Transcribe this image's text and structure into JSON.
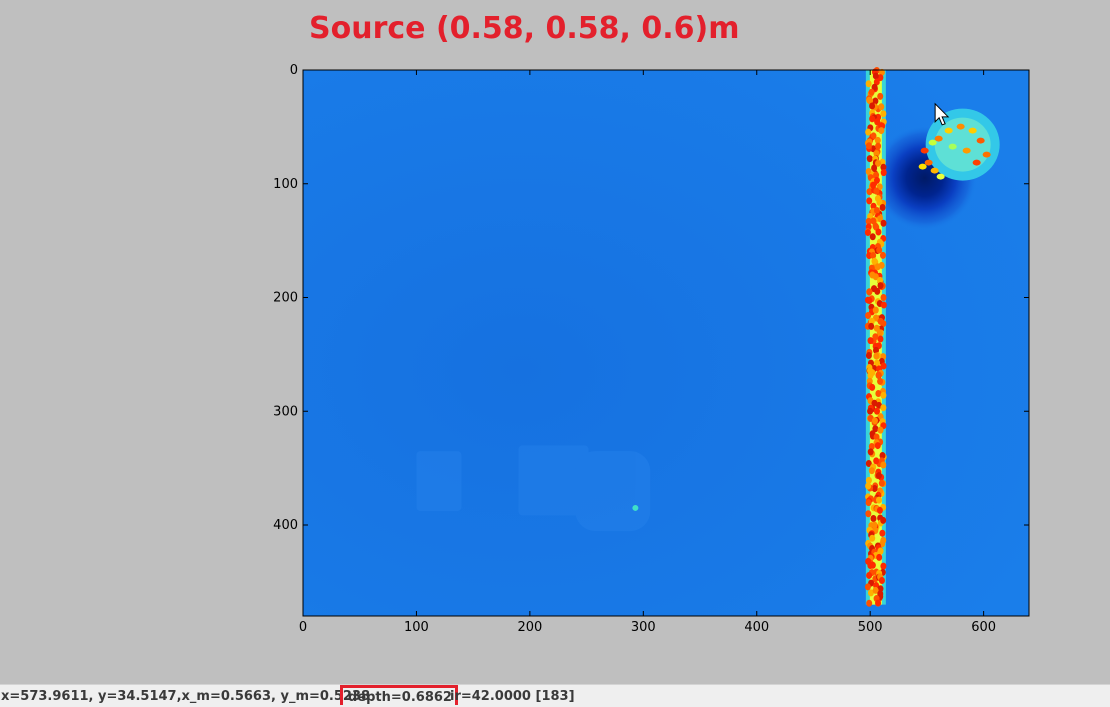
{
  "figure": {
    "title": "Source (0.58, 0.58,  0.6)m"
  },
  "chart_data": {
    "type": "heatmap",
    "title": "Source (0.58, 0.58,  0.6)m",
    "xlabel": "",
    "ylabel": "",
    "xlim": [
      0,
      640
    ],
    "ylim": [
      480,
      0
    ],
    "x_ticks": [
      0,
      100,
      200,
      300,
      400,
      500,
      600
    ],
    "y_ticks": [
      0,
      100,
      200,
      300,
      400
    ],
    "colormap": "jet",
    "grid": false,
    "features": [
      {
        "name": "vertical stripe",
        "x": 505,
        "y_range": [
          0,
          470
        ]
      },
      {
        "name": "dark blob",
        "x": 548,
        "y": 95
      },
      {
        "name": "bright disc",
        "x": 578,
        "y": 55
      },
      {
        "name": "cursor",
        "x": 574,
        "y": 35
      }
    ]
  },
  "colors": {
    "background": "#bfbfbf",
    "title": "#e3202c",
    "field": "#1877e6",
    "highlight_box": "#e3202c"
  },
  "icons": {
    "cursor": "arrow-cursor-icon"
  },
  "statusbar": {
    "coords": "x=573.9611, y=34.5147,x_m=0.5663, y_m=0.5238",
    "depth": "depth=0.6862",
    "ir": "ir=42.0000 [183]"
  }
}
